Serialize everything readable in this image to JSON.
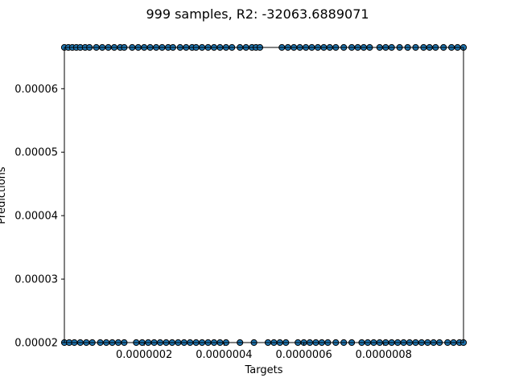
{
  "chart_data": {
    "type": "scatter",
    "title": "999 samples, R2: -32063.6889071",
    "xlabel": "Targets",
    "ylabel": "Predictions",
    "xlim": [
      0.0,
      1e-06
    ],
    "ylim": [
      2e-05,
      6.65e-05
    ],
    "x_ticks": [
      2e-07,
      4e-07,
      6e-07,
      8e-07
    ],
    "x_tick_labels": [
      "0.0000002",
      "0.0000004",
      "0.0000006",
      "0.0000008"
    ],
    "y_ticks": [
      2e-05,
      3e-05,
      4e-05,
      5e-05,
      6e-05
    ],
    "y_tick_labels": [
      "0.00002",
      "0.00003",
      "0.00004",
      "0.00005",
      "0.00006"
    ],
    "grid": false,
    "marker_color": "#1f77b4",
    "marker_edge_color": "#000000",
    "series": [
      {
        "x": [
          0.0,
          1e-08,
          2e-08,
          3e-08,
          4e-08,
          5.2e-08,
          6.3e-08,
          8e-08,
          9.5e-08,
          1.1e-07,
          1.25e-07,
          1.4e-07,
          1.5e-07,
          1.7e-07,
          1.85e-07,
          2e-07,
          2.15e-07,
          2.3e-07,
          2.45e-07,
          2.6e-07,
          2.72e-07,
          2.9e-07,
          3.05e-07,
          3.2e-07,
          3.3e-07,
          3.45e-07,
          3.6e-07,
          3.75e-07,
          3.9e-07,
          4.05e-07,
          4.2e-07,
          4.4e-07,
          4.55e-07,
          4.7e-07,
          4.8e-07,
          4.9e-07,
          5.45e-07,
          5.6e-07,
          5.75e-07,
          5.9e-07,
          6.05e-07,
          6.2e-07,
          6.35e-07,
          6.5e-07,
          6.65e-07,
          6.8e-07,
          7e-07,
          7.2e-07,
          7.35e-07,
          7.5e-07,
          7.65e-07,
          7.9e-07,
          8.05e-07,
          8.2e-07,
          8.4e-07,
          8.6e-07,
          8.8e-07,
          9e-07,
          9.15e-07,
          9.3e-07,
          9.5e-07,
          9.7e-07,
          9.85e-07,
          1e-06
        ],
        "y": [
          6.65e-05,
          6.65e-05,
          6.65e-05,
          6.65e-05,
          6.65e-05,
          6.65e-05,
          6.65e-05,
          6.65e-05,
          6.65e-05,
          6.65e-05,
          6.65e-05,
          6.65e-05,
          6.65e-05,
          6.65e-05,
          6.65e-05,
          6.65e-05,
          6.65e-05,
          6.65e-05,
          6.65e-05,
          6.65e-05,
          6.65e-05,
          6.65e-05,
          6.65e-05,
          6.65e-05,
          6.65e-05,
          6.65e-05,
          6.65e-05,
          6.65e-05,
          6.65e-05,
          6.65e-05,
          6.65e-05,
          6.65e-05,
          6.65e-05,
          6.65e-05,
          6.65e-05,
          6.65e-05,
          6.65e-05,
          6.65e-05,
          6.65e-05,
          6.65e-05,
          6.65e-05,
          6.65e-05,
          6.65e-05,
          6.65e-05,
          6.65e-05,
          6.65e-05,
          6.65e-05,
          6.65e-05,
          6.65e-05,
          6.65e-05,
          6.65e-05,
          6.65e-05,
          6.65e-05,
          6.65e-05,
          6.65e-05,
          6.65e-05,
          6.65e-05,
          6.65e-05,
          6.65e-05,
          6.65e-05,
          6.65e-05,
          6.65e-05,
          6.65e-05,
          6.65e-05
        ]
      },
      {
        "x": [
          0.0,
          1.2e-08,
          2.5e-08,
          4e-08,
          5.5e-08,
          7e-08,
          9e-08,
          1.05e-07,
          1.2e-07,
          1.35e-07,
          1.5e-07,
          1.8e-07,
          1.95e-07,
          2.1e-07,
          2.25e-07,
          2.4e-07,
          2.55e-07,
          2.7e-07,
          2.85e-07,
          3e-07,
          3.15e-07,
          3.3e-07,
          3.45e-07,
          3.6e-07,
          3.75e-07,
          3.9e-07,
          4.05e-07,
          4.4e-07,
          4.75e-07,
          5.1e-07,
          5.25e-07,
          5.4e-07,
          5.55e-07,
          5.85e-07,
          6e-07,
          6.15e-07,
          6.3e-07,
          6.45e-07,
          6.6e-07,
          6.8e-07,
          7e-07,
          7.2e-07,
          7.45e-07,
          7.6e-07,
          7.75e-07,
          7.9e-07,
          8.05e-07,
          8.2e-07,
          8.35e-07,
          8.5e-07,
          8.65e-07,
          8.8e-07,
          8.95e-07,
          9.1e-07,
          9.25e-07,
          9.4e-07,
          9.6e-07,
          9.75e-07,
          9.9e-07,
          1e-06
        ],
        "y": [
          2e-05,
          2e-05,
          2e-05,
          2e-05,
          2e-05,
          2e-05,
          2e-05,
          2e-05,
          2e-05,
          2e-05,
          2e-05,
          2e-05,
          2e-05,
          2e-05,
          2e-05,
          2e-05,
          2e-05,
          2e-05,
          2e-05,
          2e-05,
          2e-05,
          2e-05,
          2e-05,
          2e-05,
          2e-05,
          2e-05,
          2e-05,
          2e-05,
          2e-05,
          2e-05,
          2e-05,
          2e-05,
          2e-05,
          2e-05,
          2e-05,
          2e-05,
          2e-05,
          2e-05,
          2e-05,
          2e-05,
          2e-05,
          2e-05,
          2e-05,
          2e-05,
          2e-05,
          2e-05,
          2e-05,
          2e-05,
          2e-05,
          2e-05,
          2e-05,
          2e-05,
          2e-05,
          2e-05,
          2e-05,
          2e-05,
          2e-05,
          2e-05,
          2e-05,
          2e-05
        ]
      }
    ]
  }
}
